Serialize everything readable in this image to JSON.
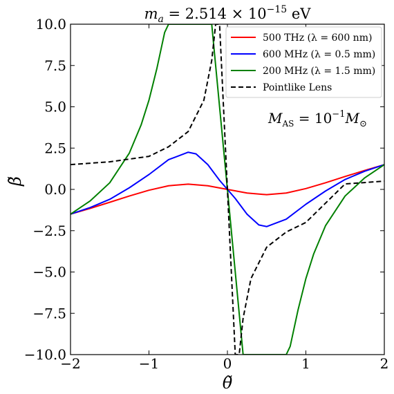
{
  "chart_data": {
    "type": "line",
    "title": "m_a = 2.514 × 10^−15 eV",
    "title_parts": {
      "lhs": "m",
      "sub": "a",
      "mid": " = 2.514 × 10",
      "sup": "−15",
      "unit": " eV"
    },
    "xlabel": "θ̃",
    "ylabel": "β̃",
    "xlim": [
      -2,
      2
    ],
    "ylim": [
      -10,
      10
    ],
    "x_ticks": [
      -2,
      -1,
      0,
      1,
      2
    ],
    "x_tick_labels": [
      "−2",
      "−1",
      "0",
      "1",
      "2"
    ],
    "y_ticks": [
      -10,
      -7.5,
      -5,
      -2.5,
      0,
      2.5,
      5,
      7.5,
      10
    ],
    "y_tick_labels": [
      "−10.0",
      "−7.5",
      "−5.0",
      "−2.5",
      "0.0",
      "2.5",
      "5.0",
      "7.5",
      "10.0"
    ],
    "grid": false,
    "legend_position": "top-right",
    "annotation": {
      "lhs": "M",
      "sub": "AS",
      "mid": " = 10",
      "sup": "−1",
      "m2": "M",
      "sub2": "⊙"
    },
    "series": [
      {
        "name": "500 THz (λ = 600 nm)",
        "color": "#ff0000",
        "dash": "solid",
        "x": [
          -2.0,
          -1.75,
          -1.5,
          -1.25,
          -1.0,
          -0.75,
          -0.5,
          -0.25,
          0.0,
          0.25,
          0.5,
          0.75,
          1.0,
          1.25,
          1.5,
          1.75,
          2.0
        ],
        "y": [
          -1.5,
          -1.15,
          -0.78,
          -0.4,
          -0.05,
          0.22,
          0.32,
          0.22,
          0.0,
          -0.22,
          -0.32,
          -0.22,
          0.05,
          0.4,
          0.78,
          1.15,
          1.5
        ]
      },
      {
        "name": "600 MHz (λ = 0.5 mm)",
        "color": "#0000ff",
        "dash": "solid",
        "x": [
          -2.0,
          -1.75,
          -1.5,
          -1.25,
          -1.0,
          -0.75,
          -0.5,
          -0.4,
          -0.25,
          -0.1,
          0.0,
          0.1,
          0.25,
          0.4,
          0.5,
          0.75,
          1.0,
          1.25,
          1.5,
          1.75,
          2.0
        ],
        "y": [
          -1.5,
          -1.1,
          -0.6,
          0.1,
          0.9,
          1.8,
          2.25,
          2.15,
          1.5,
          0.55,
          0.0,
          -0.55,
          -1.5,
          -2.15,
          -2.25,
          -1.8,
          -0.9,
          -0.1,
          0.6,
          1.1,
          1.5
        ]
      },
      {
        "name": "200 MHz (λ = 1.5 mm)",
        "color": "#008000",
        "dash": "solid",
        "x": [
          -2.0,
          -1.75,
          -1.5,
          -1.25,
          -1.1,
          -1.0,
          -0.9,
          -0.8,
          -0.75,
          -0.2,
          -0.1,
          0.0,
          0.1,
          0.2,
          0.75,
          0.8,
          0.9,
          1.0,
          1.1,
          1.25,
          1.5,
          1.75,
          2.0
        ],
        "y": [
          -1.5,
          -0.7,
          0.4,
          2.2,
          3.9,
          5.4,
          7.3,
          9.5,
          10.0,
          10.0,
          5.0,
          0.0,
          -5.0,
          -10.0,
          -10.0,
          -9.5,
          -7.3,
          -5.4,
          -3.9,
          -2.2,
          -0.4,
          0.7,
          1.5
        ]
      },
      {
        "name": "Pointlike Lens",
        "color": "#000000",
        "dash": "dashed",
        "x": [
          -2.0,
          -1.5,
          -1.0,
          -0.75,
          -0.5,
          -0.3,
          -0.2,
          -0.15,
          -0.12,
          -0.1,
          0.1,
          0.12,
          0.15,
          0.2,
          0.3,
          0.5,
          0.75,
          1.0,
          1.5,
          2.0
        ],
        "y": [
          1.5,
          1.67,
          2.0,
          2.58,
          3.5,
          5.4,
          7.8,
          10.0,
          10.0,
          10.0,
          -10.0,
          -10.0,
          -10.0,
          -7.8,
          -5.4,
          -3.5,
          -2.58,
          -2.0,
          0.33,
          0.5
        ]
      }
    ]
  }
}
